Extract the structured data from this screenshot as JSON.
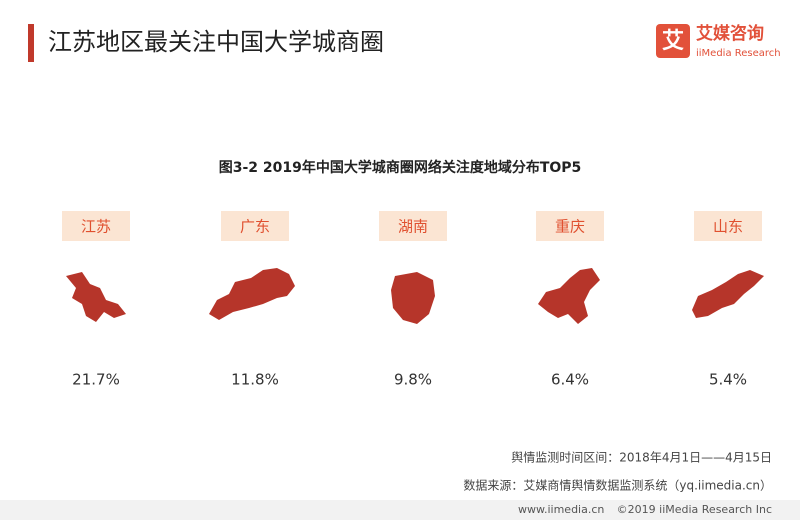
{
  "header": {
    "title": "江苏地区最关注中国大学城商圈",
    "logo_icon": "艾",
    "logo_name": "艾媒咨询",
    "logo_sub": "iiMedia Research"
  },
  "figure_title": "图3-2 2019年中国大学城商圈网络关注度地域分布TOP5",
  "items": [
    {
      "region": "江苏",
      "share": "21.7%"
    },
    {
      "region": "广东",
      "share": "11.8%"
    },
    {
      "region": "湖南",
      "share": "9.8%"
    },
    {
      "region": "重庆",
      "share": "6.4%"
    },
    {
      "region": "山东",
      "share": "5.4%"
    }
  ],
  "footer": {
    "period": "舆情监测时间区间：2018年4月1日——4月15日",
    "source": "数据来源：艾媒商情舆情数据监测系统（yq.iimedia.cn）"
  },
  "bottom_bar": {
    "site": "www.iimedia.cn",
    "copyright": "©2019  iiMedia Research  Inc"
  }
}
